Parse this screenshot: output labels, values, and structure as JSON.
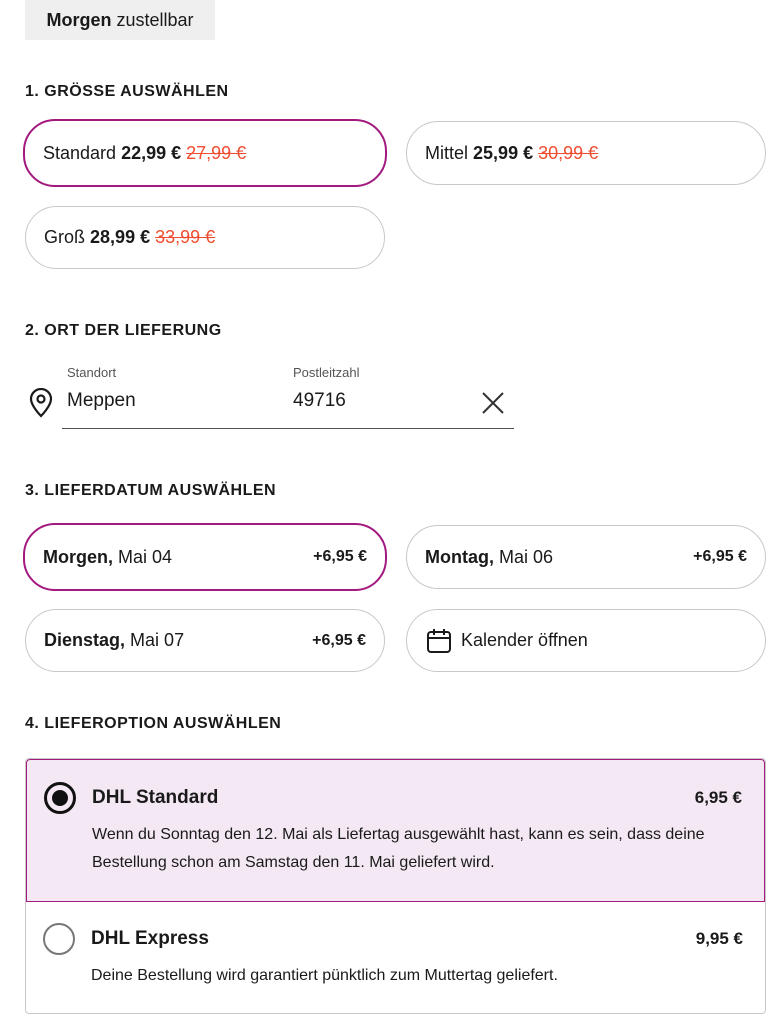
{
  "tag": {
    "bold": "Morgen",
    "rest": "zustellbar"
  },
  "colors": {
    "accent": "#a3197f",
    "strike": "#f04e30",
    "selected_bg": "#f3e8f3"
  },
  "size": {
    "heading": "1. GRÖSSE AUSWÄHLEN",
    "options": [
      {
        "name": "Standard",
        "price": "22,99 €",
        "old_price": "27,99 €",
        "selected": true
      },
      {
        "name": "Mittel",
        "price": "25,99 €",
        "old_price": "30,99 €",
        "selected": false
      },
      {
        "name": "Groß",
        "price": "28,99 €",
        "old_price": "33,99 €",
        "selected": false
      }
    ]
  },
  "location": {
    "heading": "2. ORT DER LIEFERUNG",
    "icon": "map-pin-icon",
    "place_label": "Standort",
    "place_value": "Meppen",
    "zip_label": "Postleitzahl",
    "zip_value": "49716",
    "clear_icon": "close-icon"
  },
  "date": {
    "heading": "3. LIEFERDATUM AUSWÄHLEN",
    "options": [
      {
        "day": "Morgen,",
        "date": "Mai 04",
        "price": "+6,95 €",
        "selected": true
      },
      {
        "day": "Montag,",
        "date": "Mai 06",
        "price": "+6,95 €",
        "selected": false
      },
      {
        "day": "Dienstag,",
        "date": "Mai 07",
        "price": "+6,95 €",
        "selected": false
      }
    ],
    "calendar_label": "Kalender öffnen",
    "calendar_icon": "calendar-icon"
  },
  "delivery": {
    "heading": "4. LIEFEROPTION AUSWÄHLEN",
    "options": [
      {
        "name": "DHL Standard",
        "price": "6,95 €",
        "desc": "Wenn du Sonntag den 12. Mai als Liefertag ausgewählt hast, kann es sein, dass deine Bestellung schon am Samstag den 11. Mai geliefert wird.",
        "selected": true
      },
      {
        "name": "DHL Express",
        "price": "9,95 €",
        "desc": "Deine Bestellung wird garantiert pünktlich zum Muttertag geliefert.",
        "selected": false
      }
    ]
  }
}
